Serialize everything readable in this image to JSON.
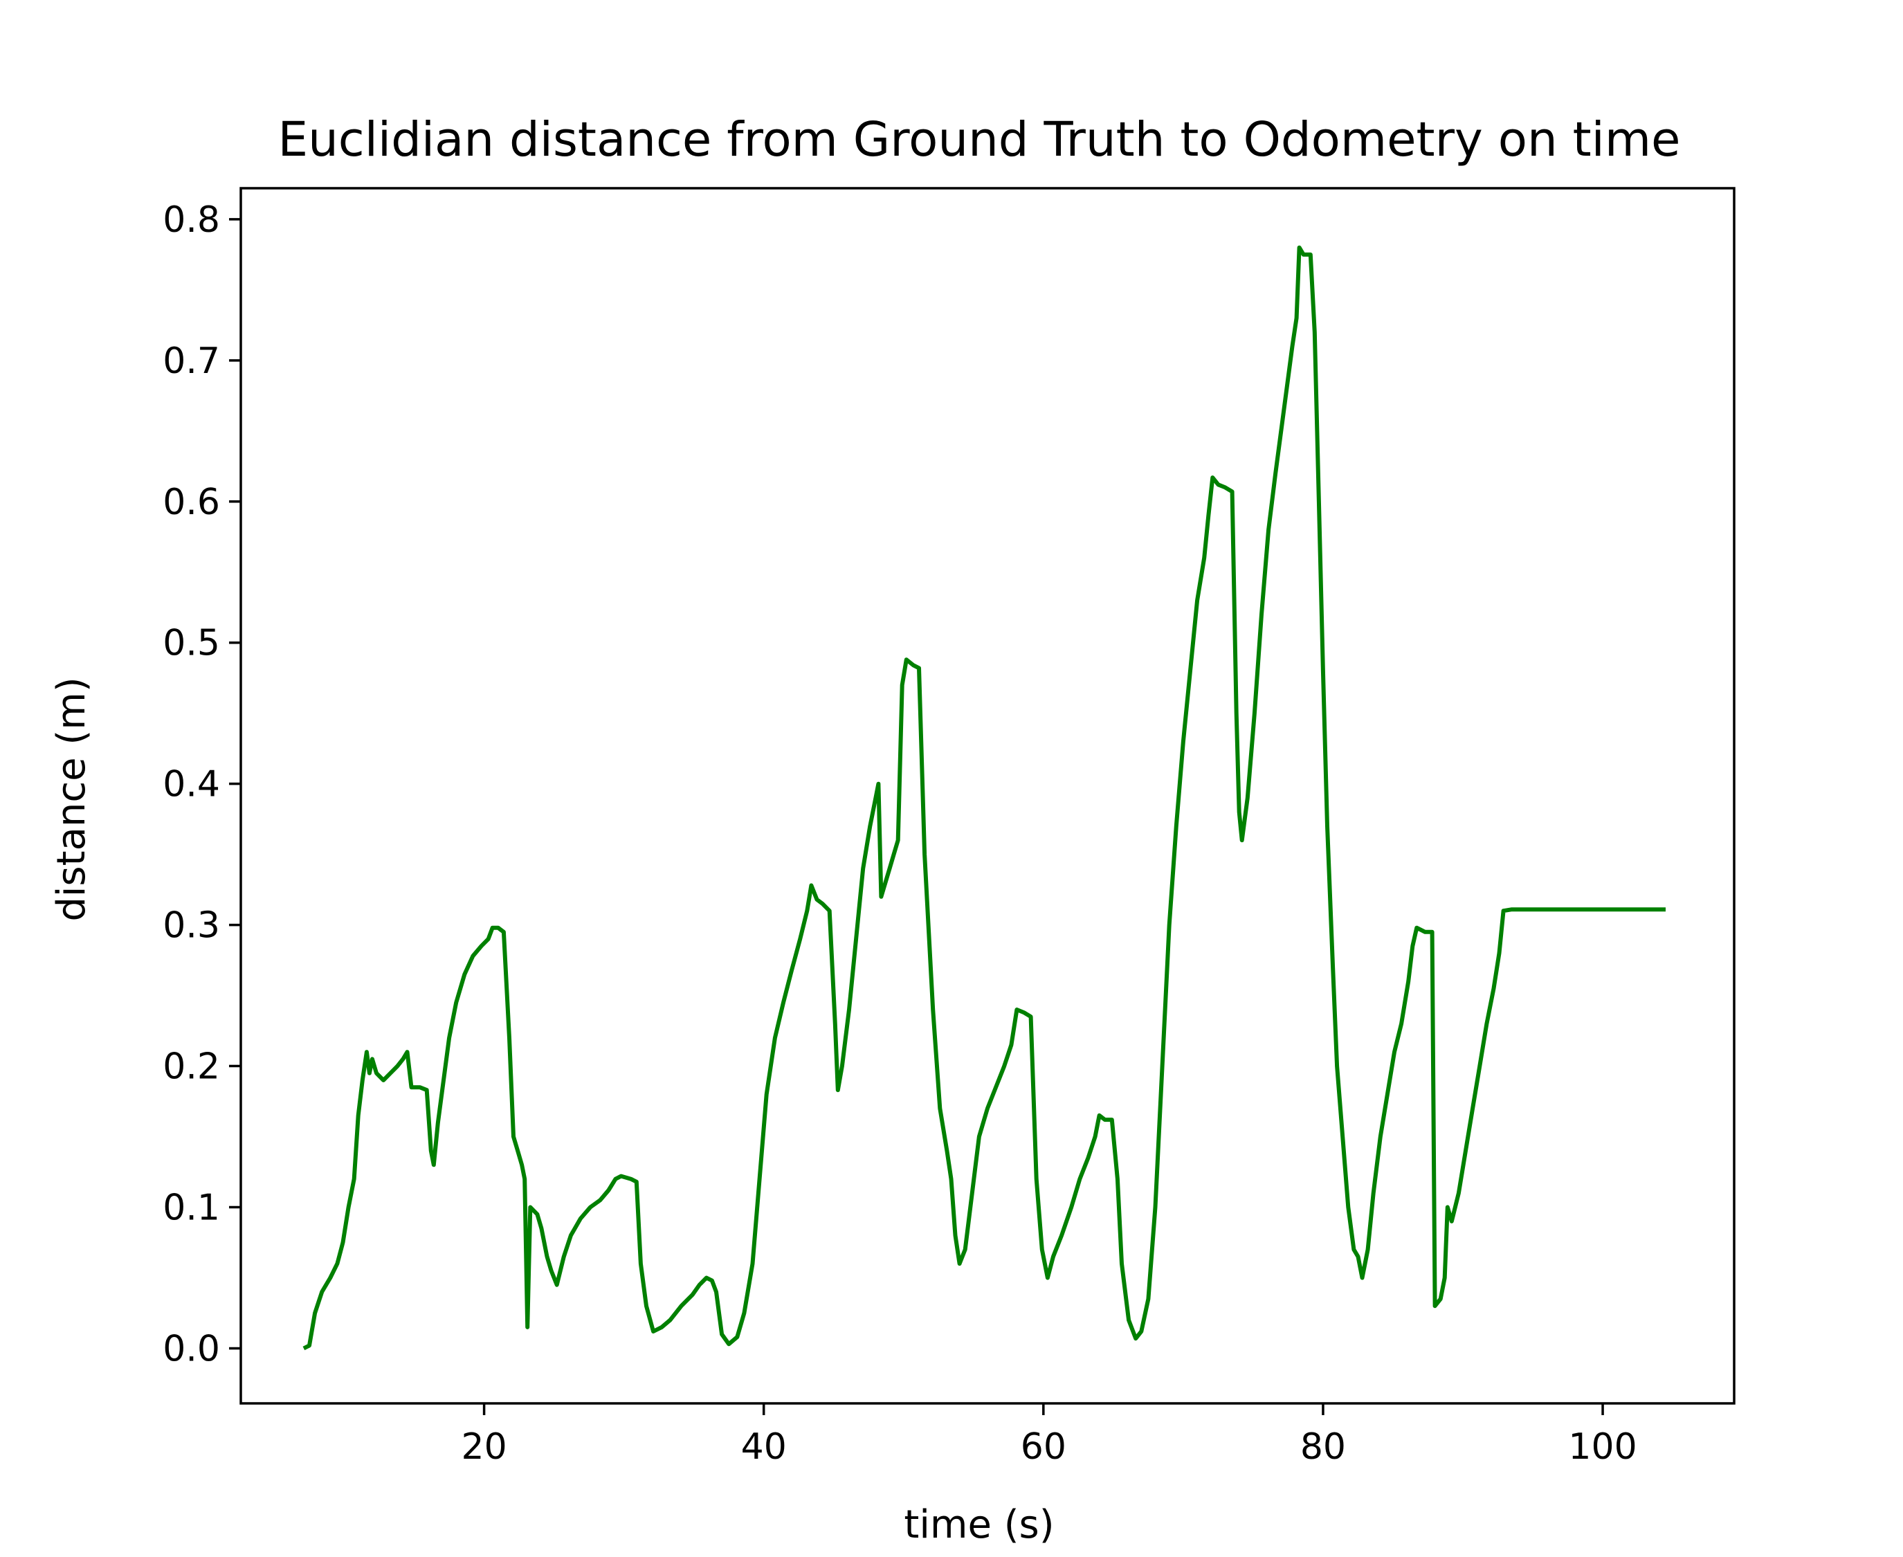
{
  "colors": {
    "series": "#008000",
    "axes": "#000000",
    "background": "#ffffff"
  },
  "chart_data": {
    "type": "line",
    "title": "Euclidian distance from Ground Truth to Odometry on time",
    "xlabel": "time (s)",
    "ylabel": "distance (m)",
    "xlim": [
      2.6,
      109.4
    ],
    "ylim": [
      -0.039,
      0.822
    ],
    "x_ticks": [
      20,
      40,
      60,
      80,
      100
    ],
    "x_tick_labels": [
      "20",
      "40",
      "60",
      "80",
      "100"
    ],
    "y_ticks": [
      0.0,
      0.1,
      0.2,
      0.3,
      0.4,
      0.5,
      0.6,
      0.7,
      0.8
    ],
    "y_tick_labels": [
      "0.0",
      "0.1",
      "0.2",
      "0.3",
      "0.4",
      "0.5",
      "0.6",
      "0.7",
      "0.8"
    ],
    "grid": false,
    "legend": "none",
    "series": [
      {
        "color": "#008000",
        "points": [
          [
            7.1,
            0.0
          ],
          [
            7.5,
            0.002
          ],
          [
            7.9,
            0.025
          ],
          [
            8.4,
            0.04
          ],
          [
            9.0,
            0.05
          ],
          [
            9.5,
            0.06
          ],
          [
            9.9,
            0.075
          ],
          [
            10.3,
            0.1
          ],
          [
            10.7,
            0.12
          ],
          [
            11.0,
            0.165
          ],
          [
            11.3,
            0.19
          ],
          [
            11.6,
            0.21
          ],
          [
            11.8,
            0.195
          ],
          [
            12.0,
            0.205
          ],
          [
            12.3,
            0.195
          ],
          [
            12.8,
            0.19
          ],
          [
            13.3,
            0.195
          ],
          [
            13.8,
            0.2
          ],
          [
            14.2,
            0.205
          ],
          [
            14.5,
            0.21
          ],
          [
            14.8,
            0.185
          ],
          [
            15.4,
            0.185
          ],
          [
            15.9,
            0.183
          ],
          [
            16.2,
            0.14
          ],
          [
            16.4,
            0.13
          ],
          [
            16.7,
            0.16
          ],
          [
            17.1,
            0.19
          ],
          [
            17.5,
            0.22
          ],
          [
            18.0,
            0.245
          ],
          [
            18.6,
            0.265
          ],
          [
            19.2,
            0.278
          ],
          [
            19.8,
            0.285
          ],
          [
            20.3,
            0.29
          ],
          [
            20.6,
            0.298
          ],
          [
            21.0,
            0.298
          ],
          [
            21.4,
            0.295
          ],
          [
            21.8,
            0.22
          ],
          [
            22.1,
            0.15
          ],
          [
            22.4,
            0.14
          ],
          [
            22.7,
            0.13
          ],
          [
            22.9,
            0.12
          ],
          [
            23.1,
            0.015
          ],
          [
            23.3,
            0.1
          ],
          [
            23.8,
            0.095
          ],
          [
            24.1,
            0.085
          ],
          [
            24.5,
            0.065
          ],
          [
            24.8,
            0.055
          ],
          [
            25.2,
            0.045
          ],
          [
            25.7,
            0.065
          ],
          [
            26.2,
            0.08
          ],
          [
            26.9,
            0.092
          ],
          [
            27.6,
            0.1
          ],
          [
            28.3,
            0.105
          ],
          [
            28.9,
            0.112
          ],
          [
            29.4,
            0.12
          ],
          [
            29.8,
            0.122
          ],
          [
            30.5,
            0.12
          ],
          [
            30.9,
            0.118
          ],
          [
            31.2,
            0.06
          ],
          [
            31.6,
            0.03
          ],
          [
            32.1,
            0.012
          ],
          [
            32.7,
            0.015
          ],
          [
            33.3,
            0.02
          ],
          [
            34.1,
            0.03
          ],
          [
            34.9,
            0.038
          ],
          [
            35.4,
            0.045
          ],
          [
            35.9,
            0.05
          ],
          [
            36.3,
            0.048
          ],
          [
            36.6,
            0.04
          ],
          [
            37.0,
            0.01
          ],
          [
            37.5,
            0.003
          ],
          [
            38.1,
            0.008
          ],
          [
            38.6,
            0.025
          ],
          [
            39.2,
            0.06
          ],
          [
            39.7,
            0.12
          ],
          [
            40.2,
            0.18
          ],
          [
            40.8,
            0.22
          ],
          [
            41.4,
            0.245
          ],
          [
            42.0,
            0.268
          ],
          [
            42.6,
            0.29
          ],
          [
            43.1,
            0.31
          ],
          [
            43.4,
            0.328
          ],
          [
            43.8,
            0.318
          ],
          [
            44.2,
            0.315
          ],
          [
            44.7,
            0.31
          ],
          [
            45.1,
            0.23
          ],
          [
            45.3,
            0.183
          ],
          [
            45.6,
            0.2
          ],
          [
            46.1,
            0.24
          ],
          [
            46.6,
            0.29
          ],
          [
            47.1,
            0.34
          ],
          [
            47.6,
            0.37
          ],
          [
            48.0,
            0.39
          ],
          [
            48.2,
            0.4
          ],
          [
            48.4,
            0.32
          ],
          [
            49.0,
            0.34
          ],
          [
            49.3,
            0.35
          ],
          [
            49.6,
            0.36
          ],
          [
            49.9,
            0.47
          ],
          [
            50.2,
            0.488
          ],
          [
            50.7,
            0.484
          ],
          [
            51.1,
            0.482
          ],
          [
            51.5,
            0.35
          ],
          [
            52.1,
            0.24
          ],
          [
            52.6,
            0.17
          ],
          [
            53.1,
            0.14
          ],
          [
            53.4,
            0.12
          ],
          [
            53.7,
            0.08
          ],
          [
            54.0,
            0.06
          ],
          [
            54.4,
            0.07
          ],
          [
            54.9,
            0.11
          ],
          [
            55.4,
            0.15
          ],
          [
            56.0,
            0.17
          ],
          [
            56.6,
            0.185
          ],
          [
            57.2,
            0.2
          ],
          [
            57.7,
            0.215
          ],
          [
            58.1,
            0.24
          ],
          [
            58.6,
            0.238
          ],
          [
            59.1,
            0.235
          ],
          [
            59.5,
            0.12
          ],
          [
            59.9,
            0.07
          ],
          [
            60.3,
            0.05
          ],
          [
            60.7,
            0.065
          ],
          [
            61.3,
            0.08
          ],
          [
            62.0,
            0.1
          ],
          [
            62.6,
            0.12
          ],
          [
            63.2,
            0.135
          ],
          [
            63.7,
            0.15
          ],
          [
            64.0,
            0.165
          ],
          [
            64.4,
            0.162
          ],
          [
            64.9,
            0.162
          ],
          [
            65.3,
            0.12
          ],
          [
            65.6,
            0.06
          ],
          [
            66.1,
            0.02
          ],
          [
            66.6,
            0.007
          ],
          [
            67.0,
            0.012
          ],
          [
            67.5,
            0.035
          ],
          [
            68.0,
            0.1
          ],
          [
            68.5,
            0.2
          ],
          [
            69.0,
            0.3
          ],
          [
            69.5,
            0.37
          ],
          [
            70.0,
            0.43
          ],
          [
            70.5,
            0.48
          ],
          [
            71.0,
            0.53
          ],
          [
            71.5,
            0.56
          ],
          [
            71.8,
            0.59
          ],
          [
            72.1,
            0.617
          ],
          [
            72.5,
            0.612
          ],
          [
            73.0,
            0.61
          ],
          [
            73.5,
            0.607
          ],
          [
            73.8,
            0.45
          ],
          [
            74.0,
            0.38
          ],
          [
            74.2,
            0.36
          ],
          [
            74.6,
            0.39
          ],
          [
            75.1,
            0.45
          ],
          [
            75.6,
            0.52
          ],
          [
            76.1,
            0.58
          ],
          [
            76.6,
            0.62
          ],
          [
            77.0,
            0.65
          ],
          [
            77.4,
            0.68
          ],
          [
            77.8,
            0.71
          ],
          [
            78.1,
            0.73
          ],
          [
            78.3,
            0.78
          ],
          [
            78.6,
            0.775
          ],
          [
            79.1,
            0.775
          ],
          [
            79.4,
            0.72
          ],
          [
            79.7,
            0.6
          ],
          [
            80.0,
            0.48
          ],
          [
            80.3,
            0.37
          ],
          [
            80.7,
            0.27
          ],
          [
            81.0,
            0.2
          ],
          [
            81.4,
            0.15
          ],
          [
            81.8,
            0.1
          ],
          [
            82.2,
            0.07
          ],
          [
            82.5,
            0.065
          ],
          [
            82.8,
            0.05
          ],
          [
            83.2,
            0.07
          ],
          [
            83.6,
            0.11
          ],
          [
            84.1,
            0.15
          ],
          [
            84.6,
            0.18
          ],
          [
            85.1,
            0.21
          ],
          [
            85.6,
            0.23
          ],
          [
            86.1,
            0.26
          ],
          [
            86.4,
            0.285
          ],
          [
            86.7,
            0.298
          ],
          [
            87.3,
            0.295
          ],
          [
            87.8,
            0.295
          ],
          [
            88.0,
            0.03
          ],
          [
            88.4,
            0.035
          ],
          [
            88.7,
            0.05
          ],
          [
            88.9,
            0.1
          ],
          [
            89.2,
            0.09
          ],
          [
            89.7,
            0.11
          ],
          [
            90.2,
            0.14
          ],
          [
            90.7,
            0.17
          ],
          [
            91.2,
            0.2
          ],
          [
            91.7,
            0.23
          ],
          [
            92.2,
            0.255
          ],
          [
            92.6,
            0.28
          ],
          [
            92.9,
            0.31
          ],
          [
            93.5,
            0.311
          ],
          [
            94.5,
            0.311
          ],
          [
            104.5,
            0.311
          ]
        ]
      }
    ]
  }
}
